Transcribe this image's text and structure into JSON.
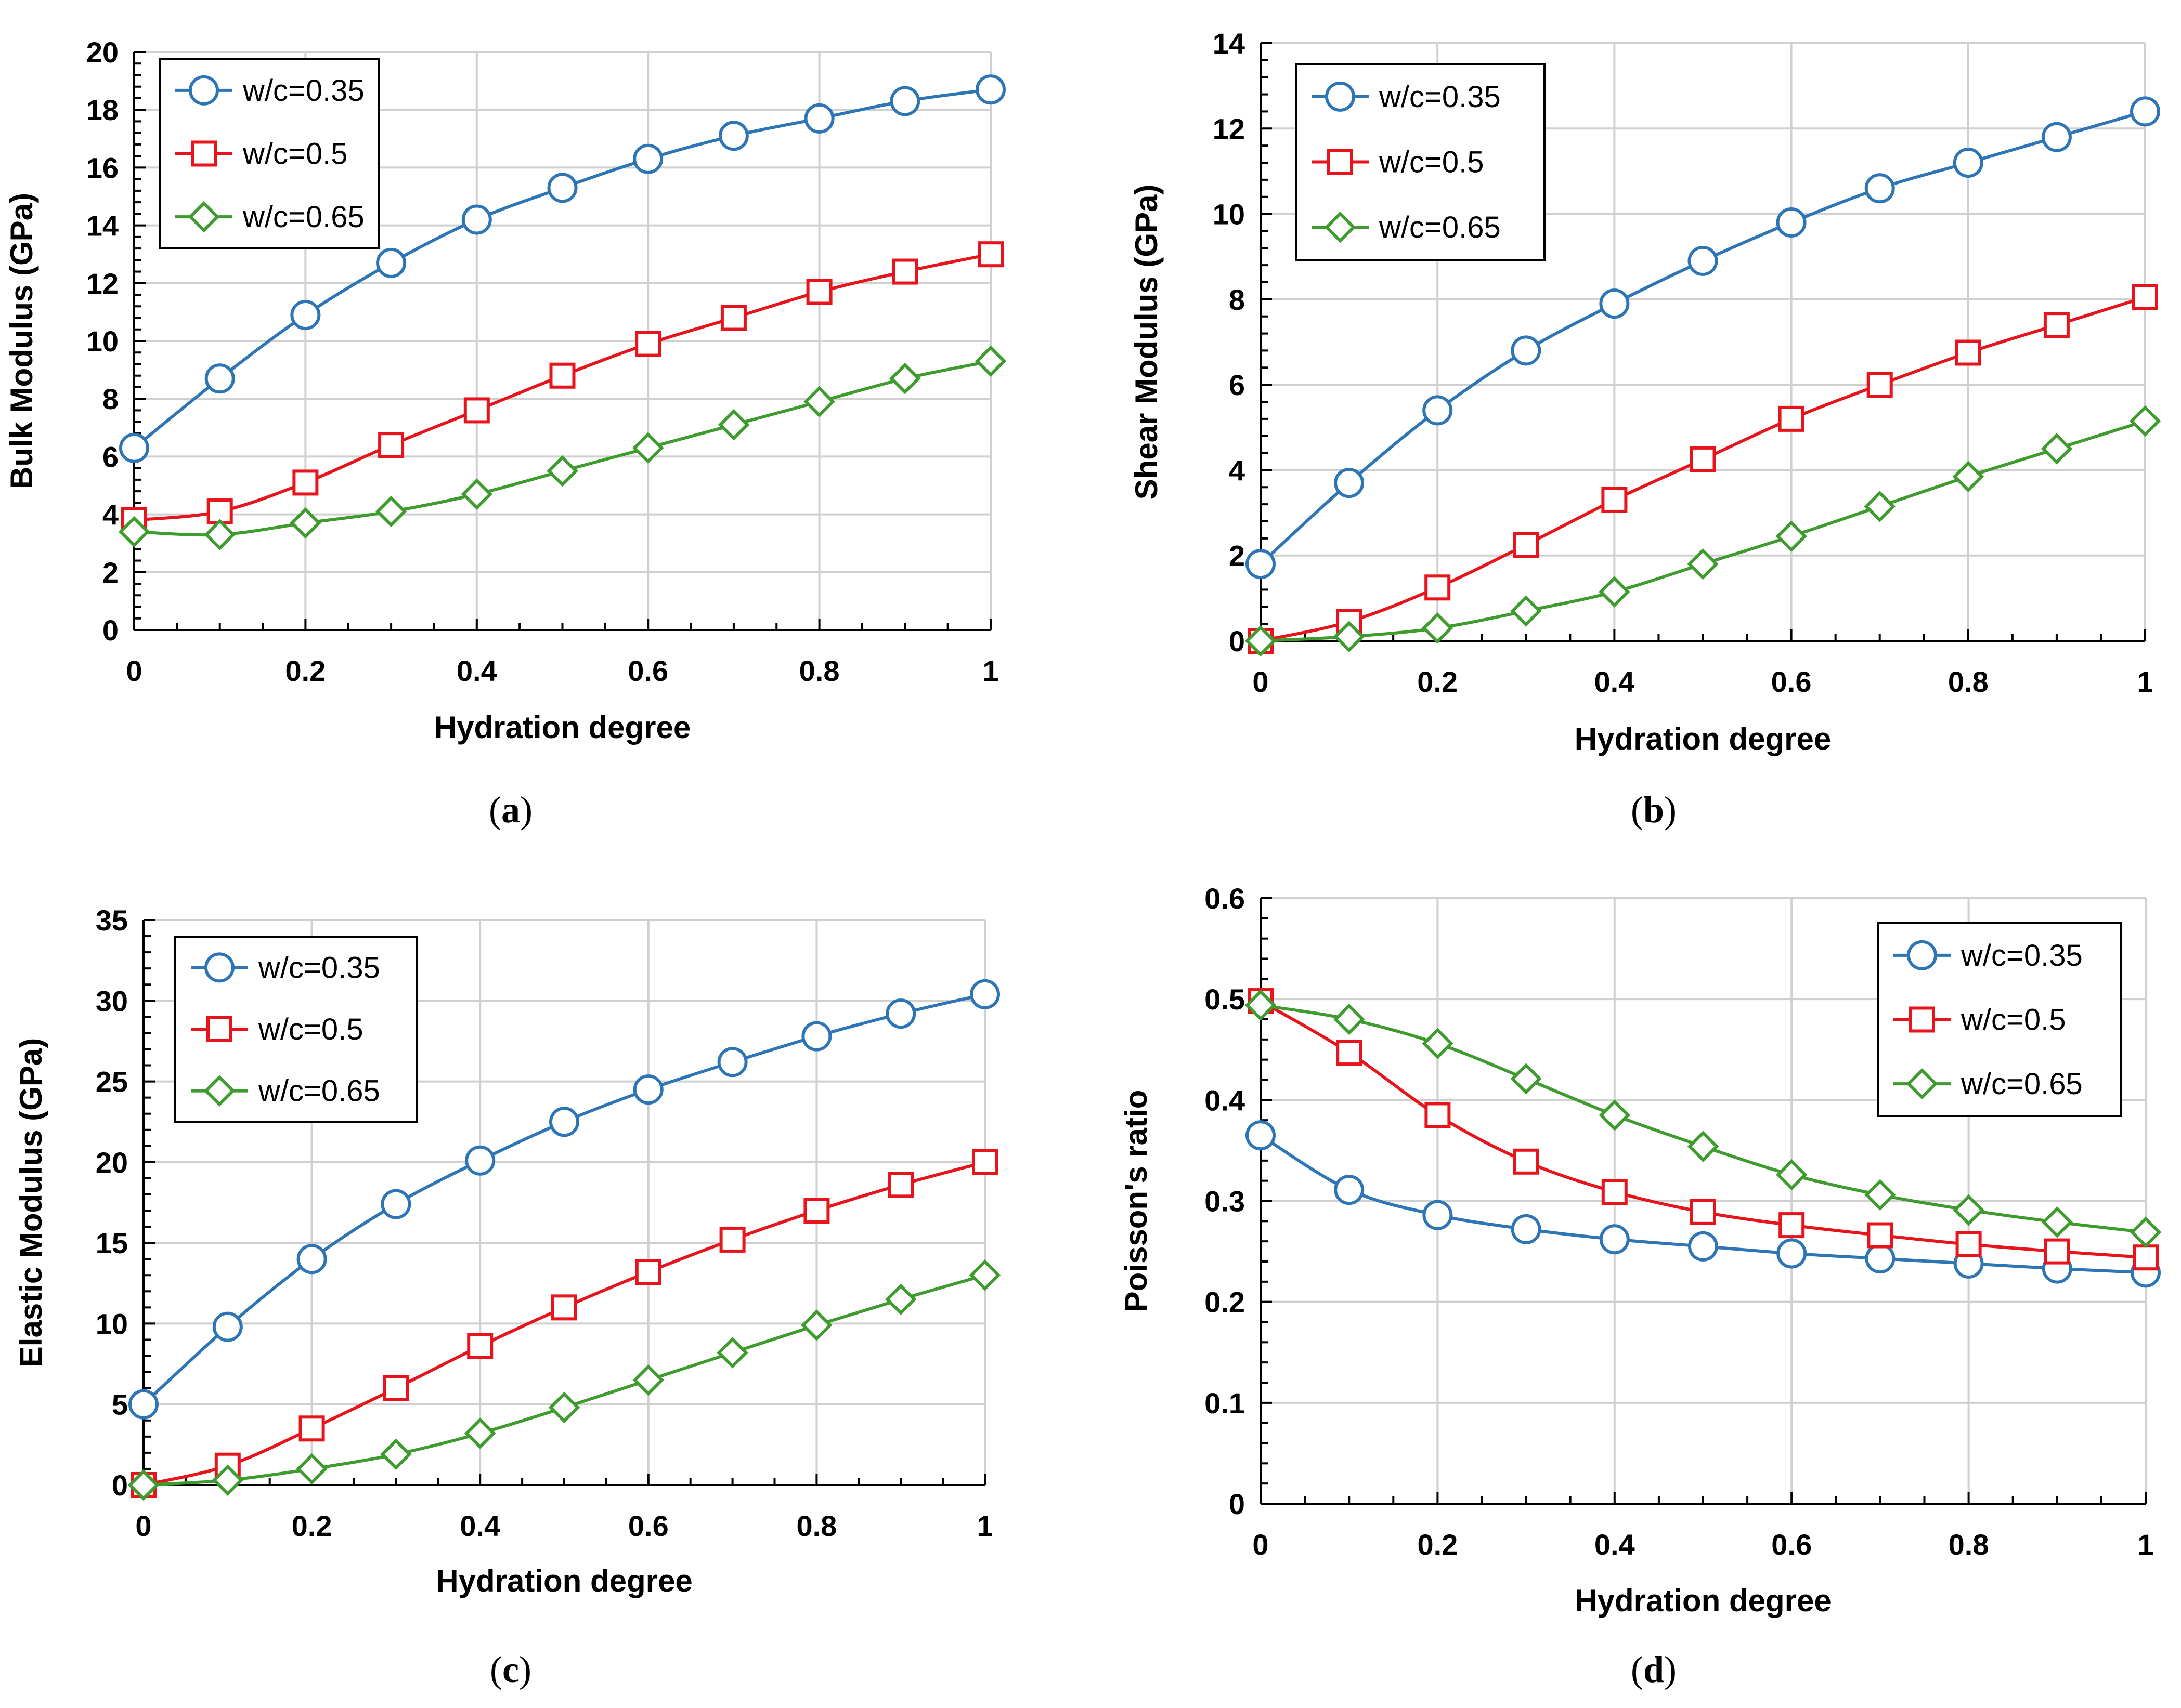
{
  "figure": {
    "panels": [
      "a",
      "b",
      "c",
      "d"
    ]
  },
  "chart_data": [
    {
      "id": "a",
      "type": "line",
      "caption": "(a)",
      "caption_letter": "a",
      "xlabel": "Hydration degree",
      "ylabel": "Bulk Modulus (GPa)",
      "xlim": [
        0,
        1
      ],
      "ylim": [
        0,
        20
      ],
      "xticks": [
        0,
        0.2,
        0.4,
        0.6,
        0.8,
        1
      ],
      "xtick_labels": [
        "0",
        "0.2",
        "0.4",
        "0.6",
        "0.8",
        "1"
      ],
      "yticks": [
        0,
        2,
        4,
        6,
        8,
        10,
        12,
        14,
        16,
        18,
        20
      ],
      "ytick_labels": [
        "0",
        "2",
        "4",
        "6",
        "8",
        "10",
        "12",
        "14",
        "16",
        "18",
        "20"
      ],
      "grid": true,
      "legend_position": "top-left",
      "x": [
        0,
        0.1,
        0.2,
        0.3,
        0.4,
        0.5,
        0.6,
        0.7,
        0.8,
        0.9,
        1
      ],
      "series": [
        {
          "name": "w/c=0.35",
          "color": "#2E75B6",
          "marker": "circle",
          "values": [
            6.3,
            8.7,
            10.9,
            12.7,
            14.2,
            15.3,
            16.3,
            17.1,
            17.7,
            18.3,
            18.7
          ]
        },
        {
          "name": "w/c=0.5",
          "color": "#E8141B",
          "marker": "square",
          "values": [
            3.8,
            4.1,
            5.1,
            6.4,
            7.6,
            8.8,
            9.9,
            10.8,
            11.7,
            12.4,
            13.0
          ]
        },
        {
          "name": "w/c=0.65",
          "color": "#3E9B2E",
          "marker": "diamond",
          "values": [
            3.4,
            3.3,
            3.7,
            4.1,
            4.7,
            5.5,
            6.3,
            7.1,
            7.9,
            8.7,
            9.3
          ]
        }
      ]
    },
    {
      "id": "b",
      "type": "line",
      "caption": "(b)",
      "caption_letter": "b",
      "xlabel": "Hydration degree",
      "ylabel": "Shear Modulus (GPa)",
      "xlim": [
        0,
        1
      ],
      "ylim": [
        0,
        14
      ],
      "xticks": [
        0,
        0.2,
        0.4,
        0.6,
        0.8,
        1
      ],
      "xtick_labels": [
        "0",
        "0.2",
        "0.4",
        "0.6",
        "0.8",
        "1"
      ],
      "yticks": [
        0,
        2,
        4,
        6,
        8,
        10,
        12,
        14
      ],
      "ytick_labels": [
        "0",
        "2",
        "4",
        "6",
        "8",
        "10",
        "12",
        "14"
      ],
      "grid": true,
      "legend_position": "top-left",
      "x": [
        0,
        0.1,
        0.2,
        0.3,
        0.4,
        0.5,
        0.6,
        0.7,
        0.8,
        0.9,
        1
      ],
      "series": [
        {
          "name": "w/c=0.35",
          "color": "#2E75B6",
          "marker": "circle",
          "values": [
            1.8,
            3.7,
            5.4,
            6.8,
            7.9,
            8.9,
            9.8,
            10.6,
            11.2,
            11.8,
            12.4
          ]
        },
        {
          "name": "w/c=0.5",
          "color": "#E8141B",
          "marker": "square",
          "values": [
            0.0,
            0.45,
            1.25,
            2.25,
            3.3,
            4.25,
            5.2,
            6.0,
            6.75,
            7.4,
            8.05
          ]
        },
        {
          "name": "w/c=0.65",
          "color": "#3E9B2E",
          "marker": "diamond",
          "values": [
            0.0,
            0.1,
            0.3,
            0.7,
            1.15,
            1.8,
            2.45,
            3.15,
            3.85,
            4.5,
            5.15
          ]
        }
      ]
    },
    {
      "id": "c",
      "type": "line",
      "caption": "(c)",
      "caption_letter": "c",
      "xlabel": "Hydration degree",
      "ylabel": "Elastic Modulus (GPa)",
      "xlim": [
        0,
        1
      ],
      "ylim": [
        0,
        35
      ],
      "xticks": [
        0,
        0.2,
        0.4,
        0.6,
        0.8,
        1
      ],
      "xtick_labels": [
        "0",
        "0.2",
        "0.4",
        "0.6",
        "0.8",
        "1"
      ],
      "yticks": [
        0,
        5,
        10,
        15,
        20,
        25,
        30,
        35
      ],
      "ytick_labels": [
        "0",
        "5",
        "10",
        "15",
        "20",
        "25",
        "30",
        "35"
      ],
      "grid": true,
      "legend_position": "top-left",
      "x": [
        0,
        0.1,
        0.2,
        0.3,
        0.4,
        0.5,
        0.6,
        0.7,
        0.8,
        0.9,
        1
      ],
      "series": [
        {
          "name": "w/c=0.35",
          "color": "#2E75B6",
          "marker": "circle",
          "values": [
            5.0,
            9.8,
            14.0,
            17.4,
            20.1,
            22.5,
            24.5,
            26.2,
            27.8,
            29.2,
            30.4
          ]
        },
        {
          "name": "w/c=0.5",
          "color": "#E8141B",
          "marker": "square",
          "values": [
            0.0,
            1.2,
            3.5,
            6.0,
            8.6,
            11.0,
            13.2,
            15.2,
            17.0,
            18.6,
            20.0
          ]
        },
        {
          "name": "w/c=0.65",
          "color": "#3E9B2E",
          "marker": "diamond",
          "values": [
            0.0,
            0.3,
            1.0,
            1.9,
            3.2,
            4.8,
            6.5,
            8.2,
            9.9,
            11.5,
            13.0
          ]
        }
      ]
    },
    {
      "id": "d",
      "type": "line",
      "caption": "(d)",
      "caption_letter": "d",
      "xlabel": "Hydration degree",
      "ylabel": "Poisson's ratio",
      "xlim": [
        0,
        1
      ],
      "ylim": [
        0,
        0.6
      ],
      "xticks": [
        0,
        0.2,
        0.4,
        0.6,
        0.8,
        1
      ],
      "xtick_labels": [
        "0",
        "0.2",
        "0.4",
        "0.6",
        "0.8",
        "1"
      ],
      "yticks": [
        0,
        0.1,
        0.2,
        0.3,
        0.4,
        0.5,
        0.6
      ],
      "ytick_labels": [
        "0",
        "0.1",
        "0.2",
        "0.3",
        "0.4",
        "0.5",
        "0.6"
      ],
      "grid": true,
      "legend_position": "top-right",
      "x": [
        0,
        0.1,
        0.2,
        0.3,
        0.4,
        0.5,
        0.6,
        0.7,
        0.8,
        0.9,
        1
      ],
      "series": [
        {
          "name": "w/c=0.35",
          "color": "#2E75B6",
          "marker": "circle",
          "values": [
            0.365,
            0.311,
            0.286,
            0.272,
            0.262,
            0.255,
            0.248,
            0.243,
            0.238,
            0.233,
            0.229
          ]
        },
        {
          "name": "w/c=0.5",
          "color": "#E8141B",
          "marker": "square",
          "values": [
            0.498,
            0.447,
            0.385,
            0.339,
            0.309,
            0.289,
            0.276,
            0.266,
            0.257,
            0.25,
            0.244
          ]
        },
        {
          "name": "w/c=0.65",
          "color": "#3E9B2E",
          "marker": "diamond",
          "values": [
            0.494,
            0.48,
            0.456,
            0.421,
            0.385,
            0.354,
            0.326,
            0.306,
            0.291,
            0.279,
            0.269
          ]
        }
      ]
    }
  ]
}
